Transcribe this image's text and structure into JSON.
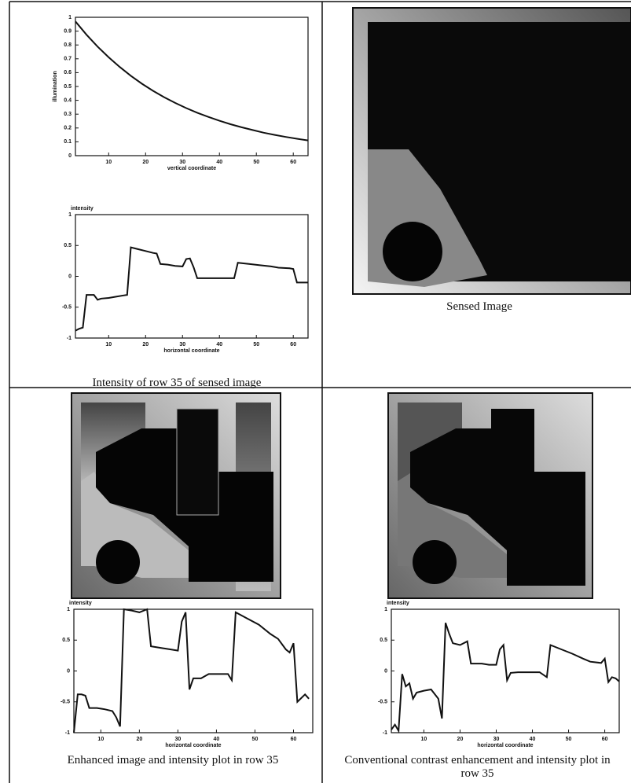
{
  "chart_data": [
    {
      "type": "line",
      "ylabel": "illumination",
      "xlabel": "vertical coordinate",
      "x": [
        1,
        4,
        7,
        10,
        13,
        16,
        19,
        22,
        25,
        28,
        31,
        34,
        37,
        40,
        43,
        46,
        49,
        52,
        55,
        58,
        61,
        64
      ],
      "values": [
        0.97,
        0.874,
        0.788,
        0.711,
        0.641,
        0.577,
        0.52,
        0.469,
        0.423,
        0.381,
        0.344,
        0.31,
        0.28,
        0.252,
        0.227,
        0.205,
        0.185,
        0.166,
        0.15,
        0.135,
        0.122,
        0.11
      ],
      "color": "#111",
      "xlim": [
        1,
        64
      ],
      "ylim": [
        0,
        1
      ],
      "xticks": [
        10,
        20,
        30,
        40,
        50,
        60
      ],
      "yticks": [
        0,
        0.1,
        0.2,
        0.3,
        0.4,
        0.5,
        0.6,
        0.7,
        0.8,
        0.9,
        1
      ]
    },
    {
      "type": "line",
      "ylabel": "intensity",
      "xlabel": "horizontal coordinate",
      "x": [
        1,
        2,
        3,
        4,
        5,
        6,
        7,
        8,
        10,
        12,
        14,
        15,
        16,
        18,
        20,
        22,
        23,
        24,
        26,
        28,
        30,
        31,
        32,
        33,
        34,
        36,
        40,
        44,
        45,
        48,
        51,
        54,
        56,
        59,
        60,
        61,
        64
      ],
      "values": [
        -0.88,
        -0.85,
        -0.83,
        -0.3,
        -0.3,
        -0.3,
        -0.38,
        -0.36,
        -0.35,
        -0.33,
        -0.31,
        -0.3,
        0.47,
        0.44,
        0.41,
        0.38,
        0.37,
        0.2,
        0.19,
        0.17,
        0.16,
        0.28,
        0.29,
        0.15,
        -0.03,
        -0.03,
        -0.03,
        -0.03,
        0.22,
        0.2,
        0.18,
        0.16,
        0.14,
        0.13,
        0.12,
        -0.1,
        -0.1
      ],
      "color": "#111",
      "xlim": [
        1,
        64
      ],
      "ylim": [
        -1,
        1
      ],
      "xticks": [
        10,
        20,
        30,
        40,
        50,
        60
      ],
      "yticks": [
        -1,
        -0.5,
        0,
        0.5,
        1
      ]
    },
    {
      "type": "line",
      "ylabel": "intensity",
      "xlabel": "horizontal coordinate",
      "x": [
        3,
        4,
        5,
        6,
        7,
        9,
        11,
        13,
        14,
        15,
        16,
        18,
        20,
        22,
        23,
        26,
        28,
        30,
        31,
        32,
        33,
        34,
        36,
        38,
        43,
        44,
        45,
        48,
        51,
        54,
        56,
        58,
        59,
        60,
        61,
        63,
        64
      ],
      "values": [
        -1,
        -0.38,
        -0.38,
        -0.4,
        -0.6,
        -0.6,
        -0.62,
        -0.65,
        -0.75,
        -0.9,
        1,
        0.98,
        0.95,
        1,
        0.4,
        0.37,
        0.35,
        0.33,
        0.8,
        0.95,
        -0.3,
        -0.12,
        -0.12,
        -0.05,
        -0.05,
        -0.15,
        0.95,
        0.85,
        0.75,
        0.6,
        0.52,
        0.35,
        0.3,
        0.45,
        -0.5,
        -0.38,
        -0.45
      ],
      "color": "#111",
      "xlim": [
        3,
        65
      ],
      "ylim": [
        -1,
        1
      ],
      "xticks": [
        10,
        20,
        30,
        40,
        50,
        60
      ],
      "yticks": [
        -1,
        -0.5,
        0,
        0.5,
        1
      ]
    },
    {
      "type": "line",
      "ylabel": "intensity",
      "xlabel": "horizontal coordinate",
      "x": [
        1,
        2,
        3,
        4,
        5,
        6,
        7,
        8,
        10,
        12,
        14,
        15,
        16,
        17,
        18,
        20,
        22,
        23,
        26,
        28,
        30,
        31,
        32,
        33,
        34,
        36,
        42,
        44,
        45,
        48,
        51,
        54,
        56,
        59,
        60,
        61,
        62,
        63,
        64
      ],
      "values": [
        -0.95,
        -0.87,
        -0.97,
        -0.05,
        -0.25,
        -0.2,
        -0.45,
        -0.35,
        -0.32,
        -0.3,
        -0.45,
        -0.77,
        0.78,
        0.6,
        0.45,
        0.42,
        0.48,
        0.12,
        0.12,
        0.1,
        0.1,
        0.35,
        0.42,
        -0.15,
        -0.03,
        -0.02,
        -0.02,
        -0.1,
        0.42,
        0.35,
        0.28,
        0.2,
        0.15,
        0.13,
        0.2,
        -0.18,
        -0.1,
        -0.12,
        -0.17
      ],
      "color": "#111",
      "xlim": [
        1,
        64
      ],
      "ylim": [
        -1,
        1
      ],
      "xticks": [
        10,
        20,
        30,
        40,
        50,
        60
      ],
      "yticks": [
        -1,
        -0.5,
        0,
        0.5,
        1
      ]
    }
  ],
  "captions": [
    "Intensity of row 35 of sensed image",
    "Sensed Image",
    "Enhanced image and intensity plot in row 35",
    "Conventional contrast enhancement and intensity plot in row 35"
  ]
}
